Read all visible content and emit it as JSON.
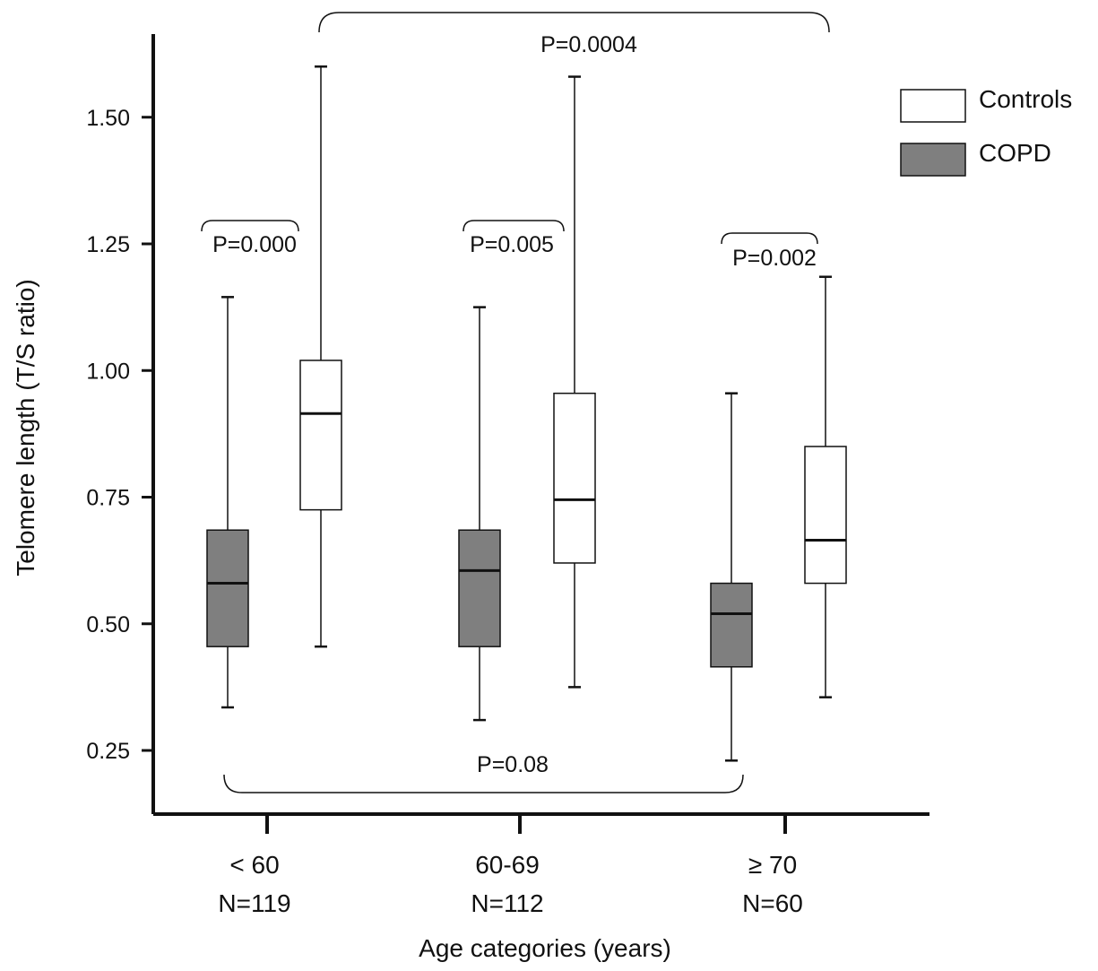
{
  "chart_data": {
    "type": "box",
    "title": "",
    "ylabel": "Telomere length (T/S ratio)",
    "xlabel": "Age categories (years)",
    "ylim": [
      0.125,
      1.7
    ],
    "yticks": [
      "0.25",
      "0.50",
      "0.75",
      "1.00",
      "1.25",
      "1.50"
    ],
    "ytick_values": [
      0.25,
      0.5,
      0.75,
      1.0,
      1.25,
      1.5
    ],
    "categories": [
      {
        "label": "< 60",
        "n": "N=119"
      },
      {
        "label": "60-69",
        "n": "N=112"
      },
      {
        "label": "≥ 70",
        "n": "N=60"
      }
    ],
    "legend": {
      "position": "top-right",
      "items": [
        {
          "name": "Controls",
          "color": "#ffffff"
        },
        {
          "name": "COPD",
          "color": "#7f7f7f"
        }
      ]
    },
    "series": [
      {
        "name": "COPD",
        "color": "#7f7f7f",
        "boxes": [
          {
            "min": 0.335,
            "q1": 0.455,
            "median": 0.58,
            "q3": 0.685,
            "max": 1.145
          },
          {
            "min": 0.31,
            "q1": 0.455,
            "median": 0.605,
            "q3": 0.685,
            "max": 1.125
          },
          {
            "min": 0.23,
            "q1": 0.415,
            "median": 0.52,
            "q3": 0.58,
            "max": 0.955
          }
        ]
      },
      {
        "name": "Controls",
        "color": "#ffffff",
        "boxes": [
          {
            "min": 0.455,
            "q1": 0.725,
            "median": 0.915,
            "q3": 1.02,
            "max": 1.6
          },
          {
            "min": 0.375,
            "q1": 0.62,
            "median": 0.745,
            "q3": 0.955,
            "max": 1.58
          },
          {
            "min": 0.355,
            "q1": 0.58,
            "median": 0.665,
            "q3": 0.85,
            "max": 1.185
          }
        ]
      }
    ],
    "annotations": [
      {
        "text": "P=0.000",
        "from": "COPD <60",
        "to": "Controls <60"
      },
      {
        "text": "P=0.005",
        "from": "COPD 60-69",
        "to": "Controls 60-69"
      },
      {
        "text": "P=0.002",
        "from": "COPD ≥70",
        "to": "Controls ≥70"
      },
      {
        "text": "P=0.0004",
        "from": "Controls <60",
        "to": "Controls ≥70"
      },
      {
        "text": "P=0.08",
        "from": "COPD <60",
        "to": "COPD ≥70"
      }
    ]
  }
}
